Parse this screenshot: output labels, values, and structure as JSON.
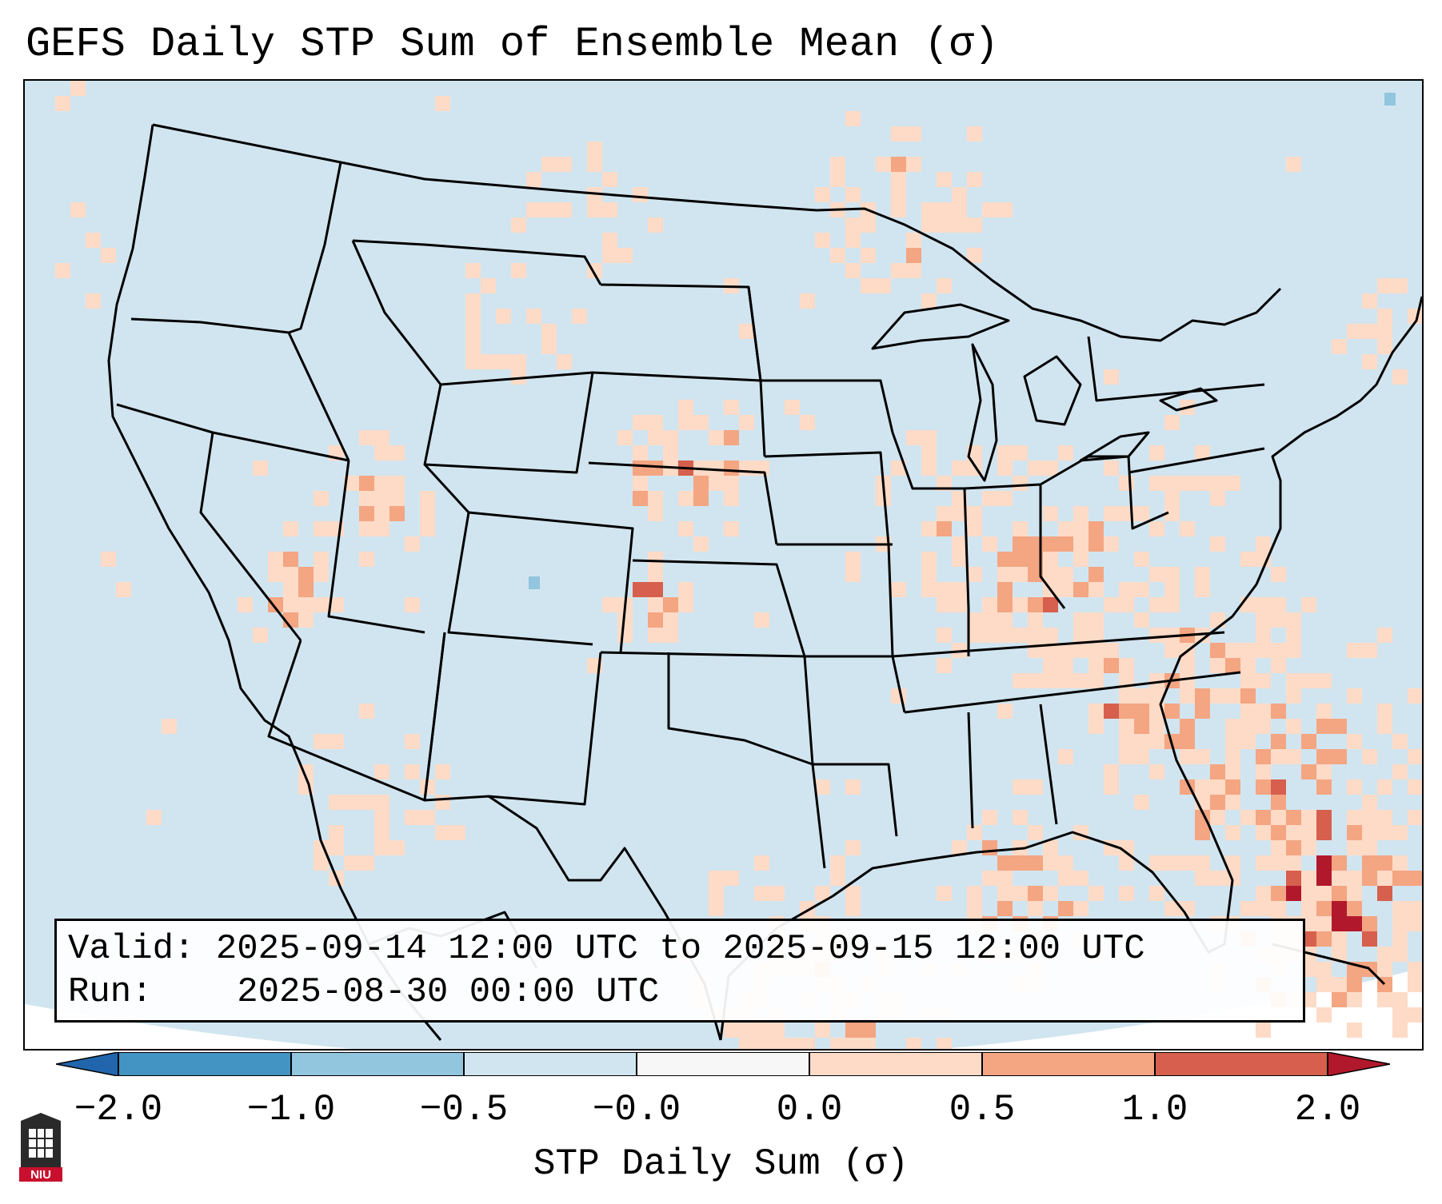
{
  "title": "GEFS Daily STP Sum of Ensemble Mean (σ)",
  "info": {
    "valid_label": "Valid:",
    "valid_value": "2025-09-14 12:00 UTC to 2025-09-15 12:00 UTC",
    "run_label": "Run:",
    "run_value": "2025-08-30 00:00 UTC"
  },
  "colorbar": {
    "label": "STP Daily Sum (σ)",
    "ticks": [
      "−2.0",
      "−1.0",
      "−0.5",
      "−0.0",
      "0.0",
      "0.5",
      "1.0",
      "2.0"
    ],
    "colors": {
      "extend_low": "#2166ac",
      "bin_neg2_neg1": "#4393c3",
      "bin_neg1_neg05": "#92c5de",
      "bin_neg05_0": "#d1e5f0",
      "bin_zero": "#f7f7f7",
      "bin_0_05": "#fddbc7",
      "bin_05_1": "#f4a582",
      "bin_1_2": "#d6604d",
      "extend_high": "#b2182b"
    }
  },
  "map": {
    "background_color": "#d1e5f0",
    "region": "CONUS, southern Canada, northern Mexico, Gulf of Mexico, Caribbean"
  },
  "logo": {
    "text": "NIU"
  }
}
